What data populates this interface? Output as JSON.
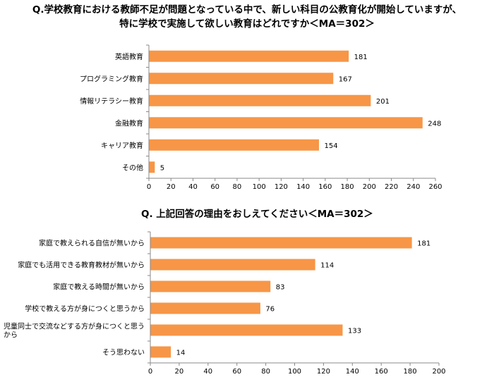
{
  "chart_data": [
    {
      "type": "bar",
      "title_lines": [
        "Q.学校教育における教師不足が問題となっている中で、新しい科目の公教育化が開始していますが、",
        "特に学校で実施して欲しい教育はどれですか＜MA＝302＞"
      ],
      "categories": [
        "英語教育",
        "プログラミング教育",
        "情報リテラシー教育",
        "金融教育",
        "キャリア教育",
        "その他"
      ],
      "values": [
        181,
        167,
        201,
        248,
        154,
        5
      ],
      "xlim": [
        0,
        260
      ],
      "xticks": [
        "0",
        "20",
        "40",
        "60",
        "80",
        "100",
        "120",
        "140",
        "160",
        "180",
        "200",
        "220",
        "240",
        "260"
      ],
      "color": "#f79646",
      "orientation": "horizontal"
    },
    {
      "type": "bar",
      "title_lines": [
        "Q. 上記回答の理由をおしえてください＜MA＝302＞"
      ],
      "categories": [
        [
          "家庭で教えられる自信が無いから"
        ],
        [
          "家庭でも活用できる教育教材が無いから"
        ],
        [
          "家庭で教える時間が無いから"
        ],
        [
          "学校で教える方が身につくと思うから"
        ],
        [
          "児童同士で交流などする方が身につくと思う",
          "から"
        ],
        [
          "そう思わない"
        ]
      ],
      "values": [
        181,
        114,
        83,
        76,
        133,
        14
      ],
      "xlim": [
        0,
        200
      ],
      "xticks": [
        "0",
        "20",
        "40",
        "60",
        "80",
        "100",
        "120",
        "140",
        "160",
        "180",
        "200"
      ],
      "color": "#f79646",
      "orientation": "horizontal"
    }
  ]
}
